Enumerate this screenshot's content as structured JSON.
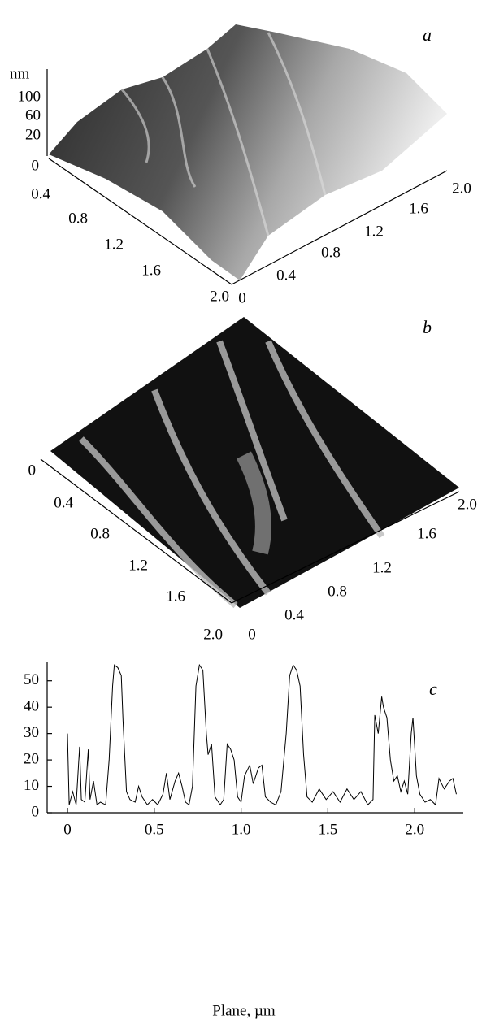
{
  "panel_a": {
    "label": "a",
    "z_unit": "nm",
    "z_ticks": [
      "100",
      "60",
      "20",
      "0"
    ],
    "left_ticks": [
      "0.4",
      "0.8",
      "1.2",
      "1.6",
      "2.0"
    ],
    "right_ticks": [
      "0",
      "0.4",
      "0.8",
      "1.2",
      "1.6",
      "2.0"
    ]
  },
  "panel_b": {
    "label": "b",
    "left_ticks": [
      "0",
      "0.4",
      "0.8",
      "1.2",
      "1.6",
      "2.0"
    ],
    "right_ticks": [
      "0",
      "0.4",
      "0.8",
      "1.2",
      "1.6",
      "2.0"
    ]
  },
  "chart_data": {
    "type": "line",
    "label": "c",
    "x_label": "Plane, µm",
    "color": "#000000",
    "xlim": [
      -0.117,
      2.28
    ],
    "ylim": [
      0,
      57
    ],
    "xticks": [
      0,
      0.5,
      {
        "value": 1,
        "label": "1.0"
      },
      1.5,
      {
        "value": 2,
        "label": "2.0"
      }
    ],
    "yticks": [
      0,
      10,
      20,
      30,
      40,
      50
    ],
    "x": [
      0,
      0.01,
      0.03,
      0.05,
      0.07,
      0.08,
      0.1,
      0.12,
      0.13,
      0.15,
      0.17,
      0.19,
      0.22,
      0.24,
      0.26,
      0.27,
      0.29,
      0.31,
      0.32,
      0.34,
      0.36,
      0.39,
      0.41,
      0.43,
      0.46,
      0.49,
      0.52,
      0.55,
      0.57,
      0.59,
      0.62,
      0.64,
      0.66,
      0.68,
      0.7,
      0.72,
      0.74,
      0.76,
      0.78,
      0.8,
      0.81,
      0.83,
      0.85,
      0.88,
      0.9,
      0.92,
      0.94,
      0.96,
      0.98,
      1.0,
      1.02,
      1.05,
      1.07,
      1.1,
      1.12,
      1.14,
      1.17,
      1.2,
      1.23,
      1.26,
      1.28,
      1.3,
      1.32,
      1.34,
      1.36,
      1.38,
      1.41,
      1.45,
      1.49,
      1.53,
      1.57,
      1.61,
      1.65,
      1.69,
      1.73,
      1.76,
      1.77,
      1.79,
      1.81,
      1.82,
      1.84,
      1.86,
      1.88,
      1.9,
      1.92,
      1.94,
      1.96,
      1.98,
      1.99,
      2.01,
      2.03,
      2.06,
      2.09,
      2.12,
      2.14,
      2.17,
      2.2,
      2.22,
      2.24
    ],
    "values": [
      30,
      3,
      8,
      3,
      25,
      5,
      4,
      24,
      5,
      12,
      3,
      4,
      3,
      20,
      48,
      56,
      55,
      52,
      35,
      8,
      5,
      4,
      10,
      6,
      3,
      5,
      3,
      7,
      15,
      5,
      12,
      15,
      10,
      4,
      3,
      10,
      48,
      56,
      54,
      30,
      22,
      26,
      6,
      3,
      5,
      26,
      24,
      20,
      6,
      4,
      14,
      18,
      11,
      17,
      18,
      6,
      4,
      3,
      8,
      30,
      52,
      56,
      54,
      48,
      22,
      6,
      4,
      9,
      5,
      8,
      4,
      9,
      5,
      8,
      3,
      5,
      37,
      30,
      44,
      40,
      36,
      20,
      12,
      14,
      8,
      12,
      7,
      30,
      36,
      14,
      7,
      4,
      5,
      3,
      13,
      9,
      12,
      13,
      7
    ]
  }
}
